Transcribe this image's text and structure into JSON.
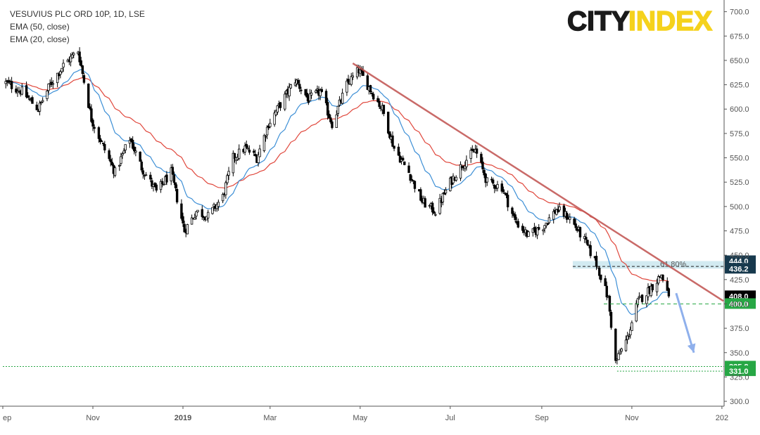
{
  "legend": {
    "title": "VESUVIUS PLC ORD 10P, 1D, LSE",
    "ema50": "EMA (50, close)",
    "ema20": "EMA (20, close)"
  },
  "brand": {
    "city": "CITY",
    "index": "INDEX",
    "city_color": "#1a1a1a",
    "index_color": "#f5d21c"
  },
  "colors": {
    "candle": "#000000",
    "ema50": "#e0473c",
    "ema20": "#3d8fd6",
    "trendline": "#c0504d",
    "zone": "#add8e6",
    "support_tag": "#27a745",
    "resistance_tag": "#17394d",
    "last_price_tag": "#000000",
    "forecast_arrow": "#8fb0ec"
  },
  "chart_data": {
    "type": "candlestick",
    "title": "VESUVIUS PLC ORD 10P, 1D, LSE",
    "y_axis": {
      "range": [
        295,
        712
      ],
      "ticks": [
        300.0,
        325.0,
        350.0,
        375.0,
        400.0,
        425.0,
        450.0,
        475.0,
        500.0,
        525.0,
        550.0,
        575.0,
        600.0,
        625.0,
        650.0,
        675.0,
        700.0
      ]
    },
    "x_axis": {
      "labels": [
        {
          "label": "ep",
          "date": "2018-09"
        },
        {
          "label": "Nov",
          "date": "2018-11"
        },
        {
          "label": "2019",
          "date": "2019-01"
        },
        {
          "label": "Mar",
          "date": "2019-03"
        },
        {
          "label": "May",
          "date": "2019-05"
        },
        {
          "label": "Jul",
          "date": "2019-07"
        },
        {
          "label": "Sep",
          "date": "2019-09"
        },
        {
          "label": "Nov",
          "date": "2019-11"
        },
        {
          "label": "202",
          "date": "2020-01"
        }
      ],
      "range": [
        "2018-09-01",
        "2020-01-02"
      ]
    },
    "price_path": [
      [
        "2018-09-03",
        627
      ],
      [
        "2018-09-14",
        618
      ],
      [
        "2018-09-25",
        600
      ],
      [
        "2018-10-03",
        625
      ],
      [
        "2018-10-12",
        645
      ],
      [
        "2018-10-22",
        660
      ],
      [
        "2018-10-31",
        590
      ],
      [
        "2018-11-07",
        565
      ],
      [
        "2018-11-16",
        535
      ],
      [
        "2018-11-26",
        570
      ],
      [
        "2018-12-04",
        540
      ],
      [
        "2018-12-14",
        515
      ],
      [
        "2018-12-24",
        535
      ],
      [
        "2019-01-02",
        475
      ],
      [
        "2019-01-10",
        495
      ],
      [
        "2019-01-18",
        490
      ],
      [
        "2019-01-28",
        510
      ],
      [
        "2019-02-04",
        550
      ],
      [
        "2019-02-12",
        560
      ],
      [
        "2019-02-20",
        550
      ],
      [
        "2019-02-28",
        585
      ],
      [
        "2019-03-08",
        605
      ],
      [
        "2019-03-18",
        630
      ],
      [
        "2019-03-27",
        610
      ],
      [
        "2019-04-04",
        618
      ],
      [
        "2019-04-12",
        585
      ],
      [
        "2019-04-22",
        625
      ],
      [
        "2019-04-30",
        640
      ],
      [
        "2019-05-08",
        620
      ],
      [
        "2019-05-16",
        600
      ],
      [
        "2019-05-24",
        560
      ],
      [
        "2019-06-03",
        535
      ],
      [
        "2019-06-12",
        505
      ],
      [
        "2019-06-21",
        495
      ],
      [
        "2019-07-01",
        525
      ],
      [
        "2019-07-10",
        545
      ],
      [
        "2019-07-18",
        558
      ],
      [
        "2019-07-26",
        525
      ],
      [
        "2019-08-05",
        520
      ],
      [
        "2019-08-14",
        485
      ],
      [
        "2019-08-23",
        470
      ],
      [
        "2019-09-02",
        480
      ],
      [
        "2019-09-11",
        497
      ],
      [
        "2019-09-20",
        488
      ],
      [
        "2019-09-30",
        465
      ],
      [
        "2019-10-09",
        438
      ],
      [
        "2019-10-16",
        405
      ],
      [
        "2019-10-21",
        340
      ],
      [
        "2019-10-29",
        365
      ],
      [
        "2019-11-05",
        402
      ],
      [
        "2019-11-13",
        415
      ],
      [
        "2019-11-21",
        430
      ],
      [
        "2019-11-26",
        408
      ]
    ],
    "series": [
      {
        "name": "EMA (50, close)",
        "color": "#e0473c"
      },
      {
        "name": "EMA (20, close)",
        "color": "#3d8fd6"
      }
    ],
    "trendline": {
      "from": [
        "2019-04-26",
        647
      ],
      "to": [
        "2020-01-02",
        403
      ]
    },
    "fib_level": {
      "label": "61.80%",
      "value": 438.5
    },
    "zone": {
      "from": 436.2,
      "to": 444.0,
      "start_date": "2019-09-22"
    },
    "levels": [
      {
        "value": 444.0,
        "label": "444.0",
        "kind": "resistance"
      },
      {
        "value": 436.2,
        "label": "436.2",
        "kind": "resistance"
      },
      {
        "value": 408.0,
        "label": "408.0",
        "kind": "last"
      },
      {
        "value": 400.0,
        "label": "400.0",
        "kind": "support",
        "start_date": "2019-10-13"
      },
      {
        "value": 335.8,
        "label": "335.8",
        "kind": "support",
        "start_date": "2018-09-01"
      },
      {
        "value": 331.0,
        "label": "331.0",
        "kind": "support",
        "start_date": "2019-10-22"
      }
    ],
    "forecast_arrow": {
      "from": [
        "2019-12-01",
        411
      ],
      "to": [
        "2019-12-13",
        350
      ]
    },
    "last_price": 408.0
  }
}
